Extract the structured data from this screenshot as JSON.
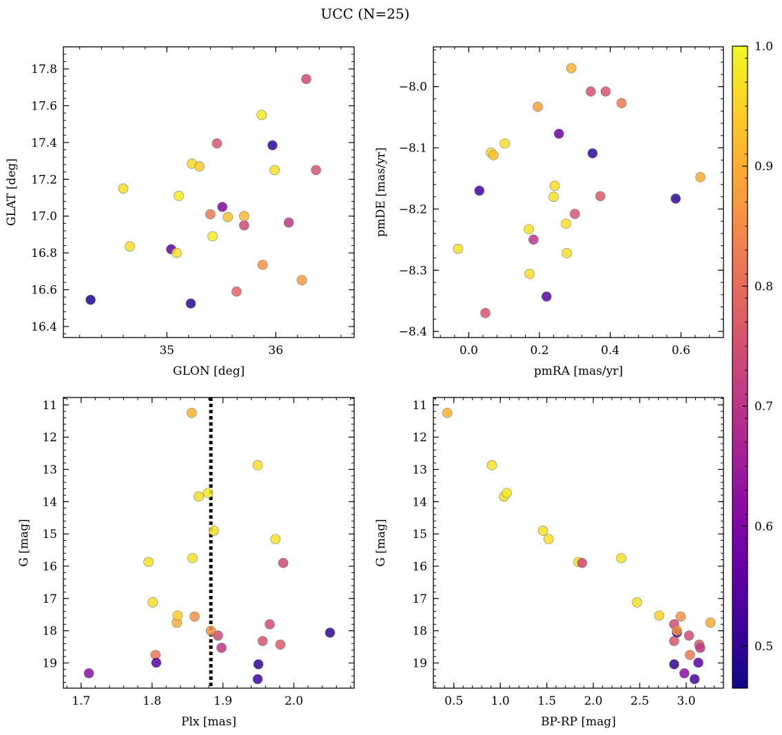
{
  "title": "UCC (N=25)",
  "colorbar": {
    "vmin": 0.465,
    "vmax": 1.0,
    "ticks": [
      0.5,
      0.6,
      0.7,
      0.8,
      0.9,
      1.0
    ],
    "tick_labels": [
      "0.5",
      "0.6",
      "0.7",
      "0.8",
      "0.9",
      "1.0"
    ],
    "colormap": "plasma",
    "stops": [
      "#0d0887",
      "#46039f",
      "#7201a8",
      "#9c179e",
      "#bd3786",
      "#d8576b",
      "#ed7953",
      "#fb9f3a",
      "#fdca26",
      "#f0f921"
    ]
  },
  "chart_data": [
    {
      "type": "scatter",
      "id": "glon-glat",
      "xlabel": "GLON [deg]",
      "ylabel": "GLAT [deg]",
      "xlim": [
        34.05,
        36.72
      ],
      "ylim": [
        16.34,
        17.92
      ],
      "xticks": [
        35,
        36
      ],
      "xtick_labels": [
        "35",
        "36"
      ],
      "yticks": [
        16.4,
        16.6,
        16.8,
        17.0,
        17.2,
        17.4,
        17.6,
        17.8
      ],
      "ytick_labels": [
        "16.4",
        "16.6",
        "16.8",
        "17.0",
        "17.2",
        "17.4",
        "17.6",
        "17.8"
      ],
      "invert_y": false,
      "points": [
        {
          "x": 34.3,
          "y": 16.545,
          "c": 0.48
        },
        {
          "x": 34.6,
          "y": 17.15,
          "c": 0.97
        },
        {
          "x": 34.66,
          "y": 16.835,
          "c": 0.97
        },
        {
          "x": 35.04,
          "y": 16.82,
          "c": 0.55
        },
        {
          "x": 35.09,
          "y": 16.8,
          "c": 0.97
        },
        {
          "x": 35.11,
          "y": 17.11,
          "c": 0.98
        },
        {
          "x": 35.22,
          "y": 16.525,
          "c": 0.5
        },
        {
          "x": 35.23,
          "y": 17.285,
          "c": 0.96
        },
        {
          "x": 35.3,
          "y": 17.27,
          "c": 0.94
        },
        {
          "x": 35.4,
          "y": 17.01,
          "c": 0.82
        },
        {
          "x": 35.42,
          "y": 16.89,
          "c": 0.98
        },
        {
          "x": 35.46,
          "y": 17.395,
          "c": 0.76
        },
        {
          "x": 35.51,
          "y": 17.05,
          "c": 0.6
        },
        {
          "x": 35.56,
          "y": 16.995,
          "c": 0.93
        },
        {
          "x": 35.64,
          "y": 16.59,
          "c": 0.78
        },
        {
          "x": 35.71,
          "y": 16.95,
          "c": 0.74
        },
        {
          "x": 35.71,
          "y": 17.0,
          "c": 0.92
        },
        {
          "x": 35.87,
          "y": 17.55,
          "c": 0.98
        },
        {
          "x": 35.88,
          "y": 16.735,
          "c": 0.86
        },
        {
          "x": 35.97,
          "y": 17.385,
          "c": 0.5
        },
        {
          "x": 35.99,
          "y": 17.25,
          "c": 0.97
        },
        {
          "x": 36.12,
          "y": 16.965,
          "c": 0.7
        },
        {
          "x": 36.24,
          "y": 16.652,
          "c": 0.88
        },
        {
          "x": 36.28,
          "y": 17.745,
          "c": 0.74
        },
        {
          "x": 36.37,
          "y": 17.25,
          "c": 0.76
        }
      ]
    },
    {
      "type": "scatter",
      "id": "pmra-pmde",
      "xlabel": "pmRA [mas/yr]",
      "ylabel": "pmDE [mas/yr]",
      "xlim": [
        -0.1,
        0.72
      ],
      "ylim": [
        -8.41,
        -7.935
      ],
      "xticks": [
        0.0,
        0.2,
        0.4,
        0.6
      ],
      "xtick_labels": [
        "0.0",
        "0.2",
        "0.4",
        "0.6"
      ],
      "yticks": [
        -8.4,
        -8.3,
        -8.2,
        -8.1,
        -8.0
      ],
      "ytick_labels": [
        "−8.4",
        "−8.3",
        "−8.2",
        "−8.1",
        "−8.0"
      ],
      "invert_y": false,
      "points": [
        {
          "x": -0.03,
          "y": -8.265,
          "c": 0.97
        },
        {
          "x": 0.03,
          "y": -8.17,
          "c": 0.52
        },
        {
          "x": 0.047,
          "y": -8.37,
          "c": 0.76
        },
        {
          "x": 0.063,
          "y": -8.108,
          "c": 0.96
        },
        {
          "x": 0.07,
          "y": -8.112,
          "c": 0.93
        },
        {
          "x": 0.102,
          "y": -8.093,
          "c": 0.97
        },
        {
          "x": 0.17,
          "y": -8.233,
          "c": 0.97
        },
        {
          "x": 0.172,
          "y": -8.306,
          "c": 0.97
        },
        {
          "x": 0.183,
          "y": -8.25,
          "c": 0.7
        },
        {
          "x": 0.195,
          "y": -8.033,
          "c": 0.88
        },
        {
          "x": 0.22,
          "y": -8.343,
          "c": 0.55
        },
        {
          "x": 0.24,
          "y": -8.18,
          "c": 0.97
        },
        {
          "x": 0.243,
          "y": -8.162,
          "c": 0.97
        },
        {
          "x": 0.255,
          "y": -8.077,
          "c": 0.58
        },
        {
          "x": 0.275,
          "y": -8.224,
          "c": 0.97
        },
        {
          "x": 0.277,
          "y": -8.272,
          "c": 0.97
        },
        {
          "x": 0.29,
          "y": -7.97,
          "c": 0.91
        },
        {
          "x": 0.3,
          "y": -8.208,
          "c": 0.76
        },
        {
          "x": 0.345,
          "y": -8.008,
          "c": 0.75
        },
        {
          "x": 0.35,
          "y": -8.109,
          "c": 0.5
        },
        {
          "x": 0.372,
          "y": -8.179,
          "c": 0.77
        },
        {
          "x": 0.387,
          "y": -8.008,
          "c": 0.76
        },
        {
          "x": 0.432,
          "y": -8.027,
          "c": 0.82
        },
        {
          "x": 0.585,
          "y": -8.183,
          "c": 0.5
        },
        {
          "x": 0.655,
          "y": -8.148,
          "c": 0.9
        }
      ]
    },
    {
      "type": "scatter",
      "id": "plx-g",
      "xlabel": "Plx [mas]",
      "ylabel": "G [mag]",
      "xlim": [
        1.675,
        2.085
      ],
      "ylim": [
        10.77,
        19.78
      ],
      "xticks": [
        1.7,
        1.8,
        1.9,
        2.0
      ],
      "xtick_labels": [
        "1.7",
        "1.8",
        "1.9",
        "2.0"
      ],
      "yticks": [
        11,
        12,
        13,
        14,
        15,
        16,
        17,
        18,
        19
      ],
      "ytick_labels": [
        "11",
        "12",
        "13",
        "14",
        "15",
        "16",
        "17",
        "18",
        "19"
      ],
      "invert_y": true,
      "vline": 1.883,
      "points": [
        {
          "x": 1.711,
          "y": 19.32,
          "c": 0.62
        },
        {
          "x": 1.795,
          "y": 15.87,
          "c": 0.97
        },
        {
          "x": 1.801,
          "y": 17.12,
          "c": 0.97
        },
        {
          "x": 1.805,
          "y": 18.75,
          "c": 0.82
        },
        {
          "x": 1.806,
          "y": 18.99,
          "c": 0.55
        },
        {
          "x": 1.835,
          "y": 17.75,
          "c": 0.9
        },
        {
          "x": 1.836,
          "y": 17.53,
          "c": 0.95
        },
        {
          "x": 1.856,
          "y": 11.25,
          "c": 0.91
        },
        {
          "x": 1.857,
          "y": 15.75,
          "c": 0.97
        },
        {
          "x": 1.86,
          "y": 17.56,
          "c": 0.86
        },
        {
          "x": 1.866,
          "y": 13.84,
          "c": 0.97
        },
        {
          "x": 1.879,
          "y": 13.73,
          "c": 0.98
        },
        {
          "x": 1.883,
          "y": 18.0,
          "c": 0.86
        },
        {
          "x": 1.887,
          "y": 14.9,
          "c": 0.97
        },
        {
          "x": 1.893,
          "y": 18.15,
          "c": 0.74
        },
        {
          "x": 1.898,
          "y": 18.53,
          "c": 0.7
        },
        {
          "x": 1.949,
          "y": 12.87,
          "c": 0.97
        },
        {
          "x": 1.95,
          "y": 19.04,
          "c": 0.5
        },
        {
          "x": 1.949,
          "y": 19.5,
          "c": 0.52
        },
        {
          "x": 1.956,
          "y": 18.32,
          "c": 0.76
        },
        {
          "x": 1.966,
          "y": 17.8,
          "c": 0.74
        },
        {
          "x": 1.974,
          "y": 15.16,
          "c": 0.97
        },
        {
          "x": 1.981,
          "y": 18.43,
          "c": 0.77
        },
        {
          "x": 1.985,
          "y": 15.9,
          "c": 0.74
        },
        {
          "x": 2.051,
          "y": 18.06,
          "c": 0.5
        }
      ]
    },
    {
      "type": "scatter",
      "id": "bprp-g",
      "xlabel": "BP-RP [mag]",
      "ylabel": "G [mag]",
      "xlim": [
        0.28,
        3.4
      ],
      "ylim": [
        10.77,
        19.78
      ],
      "xticks": [
        0.5,
        1.0,
        1.5,
        2.0,
        2.5,
        3.0
      ],
      "xtick_labels": [
        "0.5",
        "1.0",
        "1.5",
        "2.0",
        "2.5",
        "3.0"
      ],
      "yticks": [
        11,
        12,
        13,
        14,
        15,
        16,
        17,
        18,
        19
      ],
      "ytick_labels": [
        "11",
        "12",
        "13",
        "14",
        "15",
        "16",
        "17",
        "18",
        "19"
      ],
      "invert_y": true,
      "points": [
        {
          "x": 0.43,
          "y": 11.25,
          "c": 0.91
        },
        {
          "x": 0.91,
          "y": 12.87,
          "c": 0.97
        },
        {
          "x": 1.04,
          "y": 13.84,
          "c": 0.97
        },
        {
          "x": 1.07,
          "y": 13.73,
          "c": 0.98
        },
        {
          "x": 1.46,
          "y": 14.9,
          "c": 0.97
        },
        {
          "x": 1.52,
          "y": 15.16,
          "c": 0.97
        },
        {
          "x": 1.84,
          "y": 15.87,
          "c": 0.97
        },
        {
          "x": 1.88,
          "y": 15.9,
          "c": 0.74
        },
        {
          "x": 2.3,
          "y": 15.75,
          "c": 0.97
        },
        {
          "x": 2.47,
          "y": 17.12,
          "c": 0.97
        },
        {
          "x": 2.71,
          "y": 17.53,
          "c": 0.95
        },
        {
          "x": 2.87,
          "y": 18.32,
          "c": 0.76
        },
        {
          "x": 2.87,
          "y": 17.8,
          "c": 0.74
        },
        {
          "x": 2.87,
          "y": 19.04,
          "c": 0.5
        },
        {
          "x": 2.9,
          "y": 18.06,
          "c": 0.5
        },
        {
          "x": 2.9,
          "y": 18.0,
          "c": 0.86
        },
        {
          "x": 2.94,
          "y": 17.56,
          "c": 0.86
        },
        {
          "x": 2.98,
          "y": 19.32,
          "c": 0.62
        },
        {
          "x": 3.03,
          "y": 18.15,
          "c": 0.74
        },
        {
          "x": 3.04,
          "y": 18.75,
          "c": 0.82
        },
        {
          "x": 3.09,
          "y": 19.5,
          "c": 0.52
        },
        {
          "x": 3.13,
          "y": 18.99,
          "c": 0.55
        },
        {
          "x": 3.14,
          "y": 18.43,
          "c": 0.77
        },
        {
          "x": 3.15,
          "y": 18.53,
          "c": 0.7
        },
        {
          "x": 3.26,
          "y": 17.75,
          "c": 0.9
        }
      ]
    }
  ]
}
